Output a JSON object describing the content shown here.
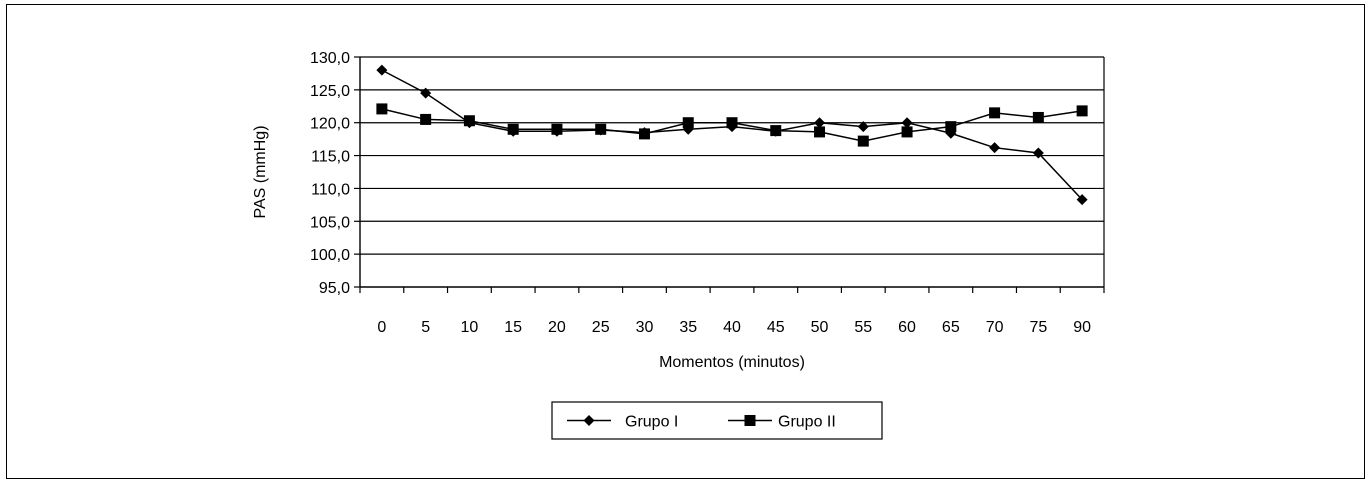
{
  "chart_data": {
    "type": "line",
    "title": "",
    "xlabel": "Momentos (minutos)",
    "ylabel": "PAS (mmHg)",
    "ylim": [
      95,
      130
    ],
    "y_step": 5,
    "y_tick_labels": [
      "95,0",
      "100,0",
      "105,0",
      "110,0",
      "115,0",
      "120,0",
      "125,0",
      "130,0"
    ],
    "categories": [
      "0",
      "5",
      "10",
      "15",
      "20",
      "25",
      "30",
      "35",
      "40",
      "45",
      "50",
      "55",
      "60",
      "65",
      "70",
      "75",
      "90"
    ],
    "grid": "horizontal",
    "legend_position": "bottom-center",
    "series": [
      {
        "name": "Grupo I",
        "marker": "diamond",
        "color": "#000000",
        "values": [
          128.0,
          124.5,
          120.0,
          118.7,
          118.7,
          118.9,
          118.5,
          119.0,
          119.4,
          118.7,
          120.0,
          119.4,
          120.0,
          118.4,
          116.2,
          115.4,
          108.3
        ]
      },
      {
        "name": "Grupo II",
        "marker": "square",
        "color": "#000000",
        "values": [
          122.1,
          120.5,
          120.3,
          119.0,
          119.0,
          119.0,
          118.3,
          120.0,
          120.0,
          118.8,
          118.6,
          117.2,
          118.6,
          119.4,
          121.5,
          120.8,
          121.8
        ]
      }
    ]
  }
}
